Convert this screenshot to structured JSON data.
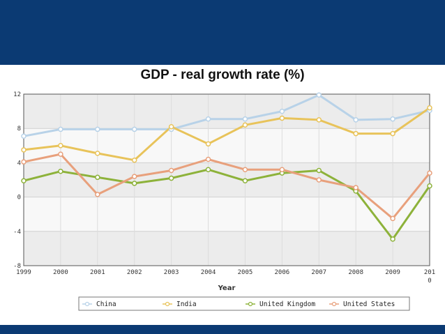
{
  "chart_data": {
    "type": "line",
    "title": "GDP - real growth rate (%)",
    "xlabel": "Year",
    "ylabel": "",
    "x": [
      1999,
      2000,
      2001,
      2002,
      2003,
      2004,
      2005,
      2006,
      2007,
      2008,
      2009,
      2010
    ],
    "x_tick_labels": [
      "1999",
      "2000",
      "2001",
      "2002",
      "2003",
      "2004",
      "2005",
      "2006",
      "2007",
      "2008",
      "2009",
      "201"
    ],
    "x_tick_label_last_second_line": "0",
    "y_ticks": [
      "12",
      "8",
      "4",
      "0",
      "-4",
      "-8"
    ],
    "ylim": [
      -8,
      12
    ],
    "grid": true,
    "legend_position": "bottom",
    "series": [
      {
        "name": "China",
        "color": "#b8d2e8",
        "values": [
          7.1,
          7.9,
          7.9,
          7.9,
          7.9,
          9.1,
          9.1,
          10.0,
          11.9,
          9.0,
          9.1,
          10.1
        ]
      },
      {
        "name": "India",
        "color": "#e8c35a",
        "values": [
          5.5,
          6.0,
          5.1,
          4.3,
          8.2,
          6.2,
          8.4,
          9.2,
          9.0,
          7.4,
          7.4,
          10.4
        ]
      },
      {
        "name": "United Kingdom",
        "color": "#8db23a",
        "values": [
          1.9,
          3.0,
          2.3,
          1.6,
          2.2,
          3.2,
          1.9,
          2.8,
          3.1,
          0.7,
          -4.9,
          1.3
        ]
      },
      {
        "name": "United States",
        "color": "#e8a07c",
        "values": [
          4.1,
          5.0,
          0.3,
          2.4,
          3.1,
          4.4,
          3.2,
          3.2,
          2.0,
          1.1,
          -2.5,
          2.8
        ]
      }
    ]
  }
}
